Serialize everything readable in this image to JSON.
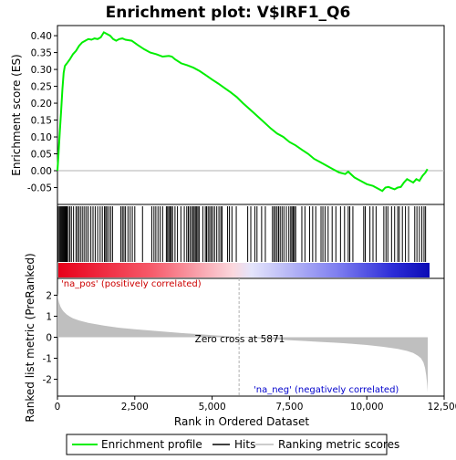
{
  "chart_data": [
    {
      "type": "line",
      "title": "Enrichment plot: V$IRF1_Q6",
      "ylabel": "Enrichment score (ES)",
      "xlim": [
        0,
        12500
      ],
      "ylim": [
        -0.1,
        0.43
      ],
      "yticks": [
        "0.40",
        "0.35",
        "0.30",
        "0.25",
        "0.20",
        "0.15",
        "0.10",
        "0.05",
        "0.00",
        "-0.05"
      ],
      "ytick_values": [
        0.4,
        0.35,
        0.3,
        0.25,
        0.2,
        0.15,
        0.1,
        0.05,
        0.0,
        -0.05
      ],
      "grid": false,
      "series": [
        {
          "name": "Enrichment profile",
          "color": "#00ee00",
          "x": [
            0,
            40,
            80,
            120,
            160,
            200,
            240,
            280,
            320,
            400,
            500,
            600,
            700,
            800,
            900,
            1000,
            1100,
            1200,
            1300,
            1400,
            1500,
            1600,
            1700,
            1800,
            1900,
            2000,
            2100,
            2200,
            2400,
            2600,
            2800,
            3000,
            3200,
            3400,
            3600,
            3700,
            3800,
            4000,
            4200,
            4400,
            4600,
            4800,
            5000,
            5200,
            5400,
            5600,
            5800,
            6000,
            6300,
            6600,
            6900,
            7100,
            7300,
            7500,
            7700,
            7900,
            8100,
            8300,
            8500,
            8700,
            8900,
            9100,
            9300,
            9400,
            9600,
            9800,
            10000,
            10200,
            10400,
            10500,
            10600,
            10700,
            10800,
            10900,
            11000,
            11100,
            11200,
            11300,
            11400,
            11500,
            11600,
            11700,
            11800,
            11900,
            11960
          ],
          "y": [
            0.0,
            0.06,
            0.12,
            0.18,
            0.24,
            0.29,
            0.31,
            0.315,
            0.32,
            0.33,
            0.345,
            0.355,
            0.37,
            0.38,
            0.385,
            0.39,
            0.388,
            0.392,
            0.39,
            0.395,
            0.41,
            0.405,
            0.4,
            0.39,
            0.385,
            0.39,
            0.392,
            0.388,
            0.385,
            0.372,
            0.36,
            0.35,
            0.345,
            0.338,
            0.34,
            0.338,
            0.33,
            0.318,
            0.312,
            0.305,
            0.295,
            0.283,
            0.27,
            0.258,
            0.245,
            0.232,
            0.218,
            0.2,
            0.175,
            0.15,
            0.125,
            0.11,
            0.1,
            0.085,
            0.075,
            0.062,
            0.05,
            0.035,
            0.025,
            0.015,
            0.005,
            -0.005,
            -0.01,
            -0.003,
            -0.02,
            -0.03,
            -0.04,
            -0.045,
            -0.055,
            -0.06,
            -0.05,
            -0.048,
            -0.052,
            -0.055,
            -0.05,
            -0.048,
            -0.035,
            -0.025,
            -0.03,
            -0.035,
            -0.025,
            -0.03,
            -0.015,
            -0.005,
            0.005
          ]
        }
      ],
      "baseline": 0.0
    },
    {
      "type": "heatmap",
      "name": "hits-and-rank-colorbar",
      "hits_x": [
        30,
        70,
        100,
        130,
        160,
        190,
        220,
        250,
        280,
        310,
        350,
        400,
        450,
        520,
        600,
        650,
        700,
        760,
        820,
        880,
        940,
        1000,
        1080,
        1150,
        1220,
        1300,
        1380,
        1450,
        1520,
        1560,
        1600,
        1660,
        1720,
        1780,
        2050,
        2100,
        2150,
        2200,
        2280,
        2350,
        2420,
        2500,
        2750,
        3050,
        3120,
        3180,
        3250,
        3320,
        3400,
        3520,
        3560,
        3600,
        3640,
        3680,
        3720,
        3800,
        3880,
        3990,
        4100,
        4180,
        4230,
        4280,
        4330,
        4380,
        4420,
        4460,
        4500,
        4540,
        4580,
        4700,
        4780,
        4820,
        4870,
        4920,
        4970,
        5020,
        5080,
        5150,
        5220,
        5280,
        5320,
        5500,
        5560,
        5640,
        5780,
        6150,
        6250,
        6380,
        6450,
        6600,
        6720,
        6950,
        7000,
        7050,
        7100,
        7150,
        7200,
        7260,
        7320,
        7400,
        7480,
        7540,
        7580,
        7620,
        7660,
        7700,
        7900,
        8000,
        8150,
        8250,
        8350,
        8520,
        8580,
        8650,
        8750,
        8880,
        9000,
        9150,
        9280,
        9400,
        9450,
        9550,
        9900,
        9950,
        10100,
        10200,
        10300,
        10550,
        10620,
        10680,
        10800,
        10900,
        11000,
        11050,
        11150,
        11250,
        11350,
        11550,
        11620,
        11700,
        11780,
        11850,
        11900
      ]
    },
    {
      "type": "area",
      "ylabel": "Ranked list metric (PreRanked)",
      "xlabel": "Rank in Ordered Dataset",
      "xlim": [
        0,
        12500
      ],
      "ylim": [
        -2.8,
        2.8
      ],
      "xticks": [
        "0",
        "2,500",
        "5,000",
        "7,500",
        "10,000",
        "12,500"
      ],
      "xtick_values": [
        0,
        2500,
        5000,
        7500,
        10000,
        12500
      ],
      "yticks": [
        "2",
        "1",
        "0",
        "-1",
        "-2"
      ],
      "ytick_values": [
        2,
        1,
        0,
        -1,
        -2
      ],
      "x": [
        0,
        20,
        50,
        100,
        150,
        200,
        300,
        400,
        500,
        700,
        1000,
        1500,
        2000,
        2500,
        3000,
        3500,
        4000,
        4500,
        5000,
        5500,
        5871,
        6500,
        7000,
        7500,
        8000,
        8500,
        9000,
        9500,
        10000,
        10500,
        11000,
        11300,
        11500,
        11650,
        11750,
        11830,
        11880,
        11920,
        11950,
        11970
      ],
      "values": [
        2.1,
        1.85,
        1.65,
        1.45,
        1.32,
        1.22,
        1.08,
        0.98,
        0.9,
        0.8,
        0.68,
        0.55,
        0.45,
        0.38,
        0.32,
        0.26,
        0.2,
        0.15,
        0.1,
        0.05,
        0.0,
        -0.06,
        -0.1,
        -0.14,
        -0.18,
        -0.22,
        -0.26,
        -0.31,
        -0.37,
        -0.45,
        -0.55,
        -0.65,
        -0.75,
        -0.88,
        -1.0,
        -1.2,
        -1.45,
        -1.8,
        -2.2,
        -2.6
      ],
      "zero_cross": 5871
    }
  ],
  "annotations": {
    "zero_cross_label": "Zero cross at 5871",
    "pos_label": "'na_pos' (positively correlated)",
    "neg_label": "'na_neg' (negatively correlated)"
  },
  "legend": {
    "items": [
      {
        "label": "Enrichment profile",
        "color": "#00ee00"
      },
      {
        "label": "Hits",
        "color": "#000000"
      },
      {
        "label": "Ranking metric scores",
        "color": "#bbbbbb"
      }
    ]
  },
  "colors": {
    "pos_text": "#cc0000",
    "neg_text": "#0000cc",
    "profile": "#00ee00",
    "area_fill": "#bfbfbf",
    "zero_line": "#b0b0b0"
  }
}
